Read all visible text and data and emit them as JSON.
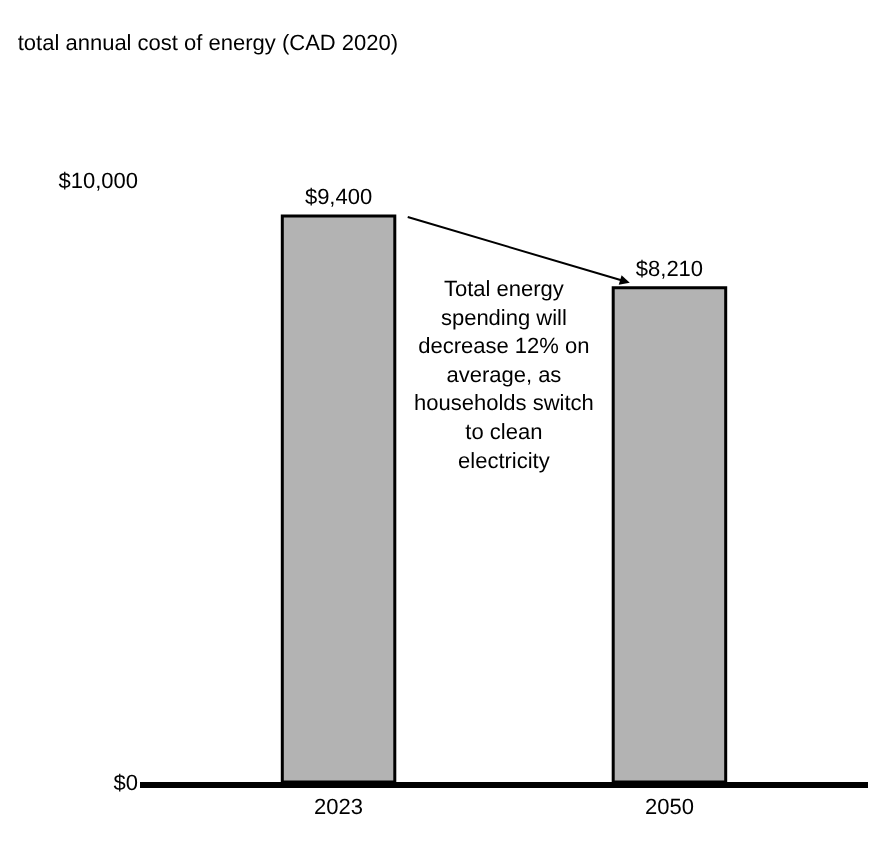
{
  "chart_data": {
    "type": "bar",
    "title": "total annual cost of energy (CAD 2020)",
    "categories": [
      "2023",
      "2050"
    ],
    "values": [
      9400,
      8210
    ],
    "value_labels": [
      "$9,400",
      "$8,210"
    ],
    "color": "#b3b3b3",
    "ylim": [
      0,
      10000
    ],
    "yticks": [
      {
        "value": 0,
        "label": "$0"
      },
      {
        "value": 10000,
        "label": "$10,000"
      }
    ],
    "legend": false,
    "annotations": [
      "Total energy spending will decrease 12% on average, as households switch to clean electricity"
    ]
  }
}
